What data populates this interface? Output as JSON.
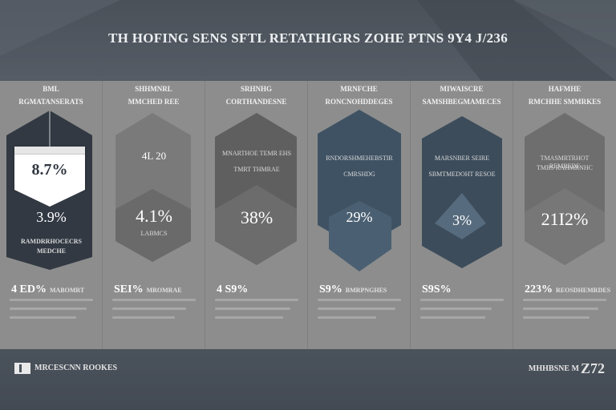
{
  "header": {
    "title": "TH HOFING SENS SFTL RETATHIGRS ZOHE PTNS 9Y4 J/236"
  },
  "columns": [
    {
      "label1": "BML",
      "label2": "RGMATANSERATS",
      "hex_value": "8.7%",
      "hex_sub": "3.9%",
      "hex_note1": "RAMDRRHOCECRS",
      "hex_note2": "MEDCHE",
      "stat": "4 ED%",
      "stat_label": "MABOMRT"
    },
    {
      "label1": "SHHMNRL",
      "label2": "MMCHED REE",
      "hex_value": "4.1%",
      "hex_sub": "4L 20",
      "hex_note1": "LABMCS",
      "hex_note2": "",
      "stat": "SEI%",
      "stat_label": "MROMRAE"
    },
    {
      "label1": "SRHNHG",
      "label2": "CORTHANDESNE",
      "hex_value": "38%",
      "hex_sub": "",
      "hex_note1": "MNARTHOE TEMR EHS",
      "hex_note2": "TMRT THMRAE",
      "stat": "4 S9%",
      "stat_label": ""
    },
    {
      "label1": "MRNFCHE",
      "label2": "RONCNOHDDEGES",
      "hex_value": "29%",
      "hex_sub": "",
      "hex_note1": "RNDORSHMEHEBSTIR",
      "hex_note2": "CMRSHDG",
      "stat": "S9%",
      "stat_label": "BMRPNGHES"
    },
    {
      "label1": "MIWAISCRE",
      "label2": "SAMSHBEGMAMECES",
      "hex_value": "3%",
      "hex_sub": "",
      "hex_note1": "MARSNBER SEIRE",
      "hex_note2": "SBMTMEDOHT RESOE",
      "stat": "S9S%",
      "stat_label": ""
    },
    {
      "label1": "HAFMHE",
      "label2": "RMCHHE SMMRKES",
      "hex_value": "21I2%",
      "hex_sub": "",
      "hex_note1": "TMASMRTRHOT REMBEDE",
      "hex_note2": "TMBS RAHMRNHC",
      "stat": "223%",
      "stat_label": "REOSDHEMRDES"
    }
  ],
  "footer": {
    "left": "MRCESCNN ROOKES",
    "right_small": "MHHBSNE M",
    "right_big": "Z72"
  },
  "colors": {
    "header": "#4e555e",
    "body": "#8d8d8d",
    "hex_dark": "#323943",
    "hex_mid": "#6a6a6a",
    "hex_blue": "#3f5263",
    "footer": "#474e57"
  }
}
